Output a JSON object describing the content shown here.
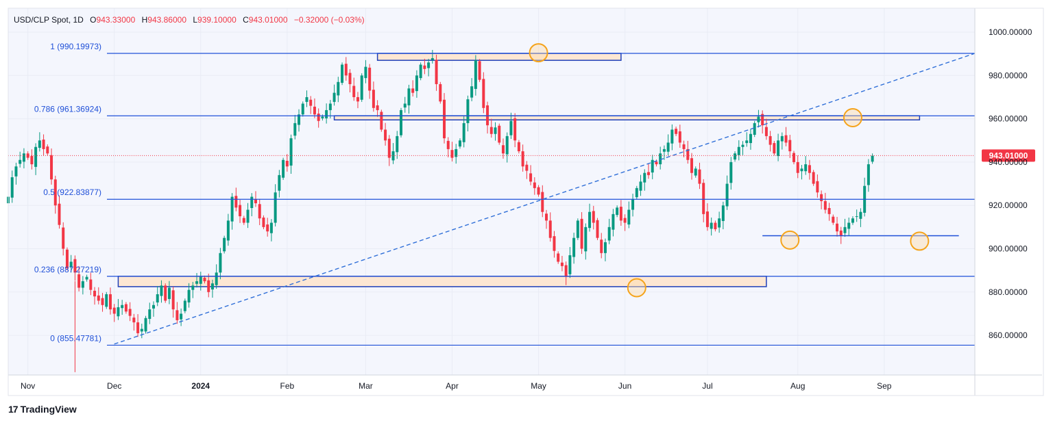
{
  "header": {
    "symbol": "USD/CLP Spot, 1D",
    "o_label": "O",
    "o_value": "943.33000",
    "h_label": "H",
    "h_value": "943.86000",
    "l_label": "L",
    "l_value": "939.10000",
    "c_label": "C",
    "c_value": "943.01000",
    "change": "−0.32000 (−0.03%)"
  },
  "branding": {
    "logo_text": "TradingView"
  },
  "colors": {
    "up": "#089981",
    "down": "#f23645",
    "fib": "#1e4fd8",
    "zone_fill": "#fde7d3",
    "zone_stroke": "#1e3fb8",
    "circle": "#f5a31a",
    "price_tag": "#f23645",
    "background": "#f4f6fd"
  },
  "chart_data": {
    "type": "candlestick",
    "title": "USD/CLP Spot, 1D",
    "ylim": [
      842,
      1010
    ],
    "y_ticks": [
      860,
      880,
      900,
      920,
      940,
      960,
      980,
      1000
    ],
    "y_tick_labels": [
      "860.00000",
      "880.00000",
      "900.00000",
      "920.00000",
      "940.00000",
      "960.00000",
      "980.00000",
      "1000.00000"
    ],
    "x_ticks": [
      "Nov",
      "Dec",
      "2024",
      "Feb",
      "Mar",
      "Apr",
      "May",
      "Jun",
      "Jul",
      "Aug",
      "Sep"
    ],
    "x_tick_bold": [
      false,
      false,
      true,
      false,
      false,
      false,
      false,
      false,
      false,
      false,
      false
    ],
    "x_tick_index": [
      5,
      27,
      49,
      71,
      91,
      113,
      135,
      157,
      178,
      201,
      223
    ],
    "last_price": 943.01,
    "last_price_label": "943.01000",
    "closes": [
      924,
      933,
      938,
      941,
      944,
      942,
      939,
      947,
      950,
      946,
      944,
      932,
      920,
      911,
      900,
      891,
      894,
      889,
      882,
      885,
      887,
      881,
      878,
      876,
      874,
      879,
      872,
      870,
      873,
      874,
      871,
      869,
      866,
      861,
      863,
      868,
      872,
      874,
      879,
      883,
      876,
      882,
      872,
      867,
      870,
      876,
      881,
      883,
      885,
      887,
      885,
      880,
      884,
      889,
      898,
      905,
      913,
      924,
      919,
      915,
      912,
      918,
      924,
      921,
      914,
      910,
      908,
      912,
      926,
      934,
      941,
      938,
      951,
      958,
      962,
      967,
      970,
      966,
      962,
      959,
      961,
      964,
      967,
      972,
      977,
      985,
      980,
      976,
      970,
      968,
      980,
      984,
      973,
      965,
      964,
      955,
      950,
      942,
      945,
      952,
      964,
      967,
      974,
      972,
      980,
      985,
      983,
      986,
      988,
      976,
      968,
      951,
      946,
      942,
      946,
      950,
      958,
      969,
      975,
      987,
      978,
      965,
      957,
      953,
      956,
      949,
      944,
      952,
      959,
      950,
      945,
      938,
      936,
      931,
      928,
      925,
      917,
      913,
      905,
      899,
      894,
      892,
      887,
      897,
      905,
      913,
      900,
      910,
      917,
      912,
      905,
      898,
      903,
      910,
      916,
      919,
      913,
      912,
      918,
      923,
      928,
      931,
      935,
      934,
      941,
      939,
      944,
      946,
      949,
      955,
      953,
      949,
      946,
      941,
      935,
      937,
      930,
      916,
      910,
      912,
      909,
      914,
      920,
      930,
      940,
      944,
      947,
      948,
      950,
      953,
      958,
      961,
      957,
      952,
      948,
      944,
      950,
      952,
      949,
      945,
      940,
      935,
      937,
      939,
      935,
      930,
      926,
      922,
      918,
      916,
      912,
      908,
      906,
      910,
      912,
      914,
      915,
      917,
      929,
      939,
      943
    ]
  },
  "fib_levels": [
    {
      "label": "1 (990.19973)",
      "value": 990.19973
    },
    {
      "label": "0.786 (961.36924)",
      "value": 961.36924
    },
    {
      "label": "0.5 (922.83877)",
      "value": 922.83877
    },
    {
      "label": "0.236 (887.27219)",
      "value": 887.27219
    },
    {
      "label": "0 (855.47781)",
      "value": 855.47781
    }
  ]
}
